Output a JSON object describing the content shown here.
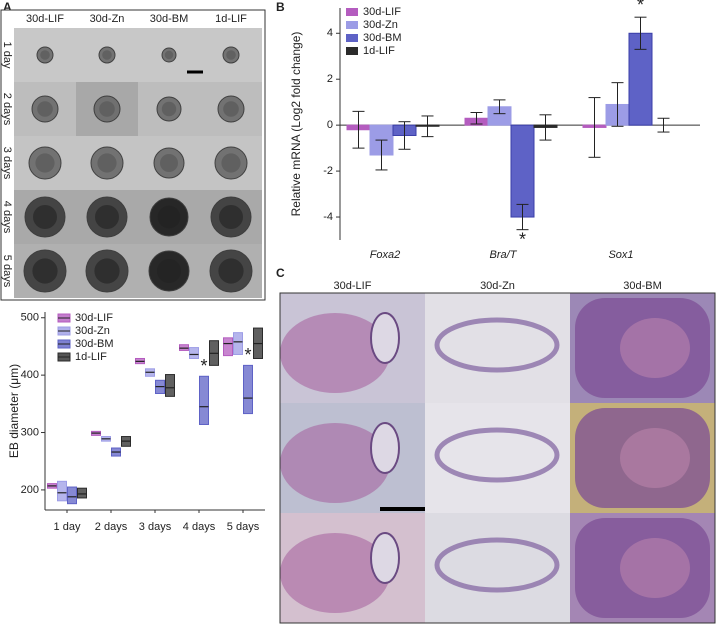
{
  "panel_labels": [
    "A",
    "B",
    "C"
  ],
  "panel_a_images": {
    "columns": [
      "30d-LIF",
      "30d-Zn",
      "30d-BM",
      "1d-LIF"
    ],
    "rows": [
      "1 day",
      "2 days",
      "3 days",
      "4 days",
      "5 days"
    ]
  },
  "panel_c_images": {
    "columns": [
      "30d-LIF",
      "30d-Zn",
      "30d-BM"
    ]
  },
  "chart_data": [
    {
      "type": "box",
      "y_label": "EB diameter (μm)",
      "categories": [
        "1 day",
        "2 days",
        "3 days",
        "4 days",
        "5 days"
      ],
      "series": [
        {
          "name": "30d-LIF",
          "color": "#b45cbf",
          "low": [
            203,
            295,
            420,
            443,
            434
          ],
          "median": [
            207,
            299,
            424,
            447,
            455
          ],
          "high": [
            211,
            302,
            429,
            453,
            465
          ]
        },
        {
          "name": "30d-Zn",
          "color": "#9c9ce6",
          "low": [
            181,
            285,
            398,
            429,
            436
          ],
          "median": [
            195,
            289,
            405,
            436,
            458
          ],
          "high": [
            215,
            293,
            411,
            448,
            474
          ]
        },
        {
          "name": "30d-BM",
          "color": "#5e62c6",
          "low": [
            176,
            259,
            368,
            314,
            333
          ],
          "median": [
            188,
            266,
            380,
            345,
            360
          ],
          "high": [
            205,
            273,
            391,
            398,
            417
          ]
        },
        {
          "name": "1d-LIF",
          "color": "#2b2b2b",
          "low": [
            186,
            276,
            363,
            417,
            429
          ],
          "median": [
            193,
            285,
            378,
            438,
            455
          ],
          "high": [
            203,
            293,
            401,
            460,
            482
          ]
        }
      ],
      "ylim": [
        165,
        510
      ],
      "yticks": [
        200,
        300,
        400,
        500
      ],
      "annotations": [
        "*",
        "*"
      ]
    },
    {
      "type": "bar",
      "y_label": "Relative mRNA (Log2 fold change)",
      "categories": [
        "Foxa2",
        "Bra/T",
        "Sox1"
      ],
      "series": [
        {
          "name": "30d-LIF",
          "color": "#b45cbf",
          "values": [
            -0.2,
            0.3,
            -0.1
          ],
          "errors": [
            0.8,
            0.25,
            1.3
          ]
        },
        {
          "name": "30d-Zn",
          "color": "#9c9ce6",
          "values": [
            -1.3,
            0.8,
            0.9
          ],
          "errors": [
            0.65,
            0.3,
            0.95
          ]
        },
        {
          "name": "30d-BM",
          "color": "#5e62c6",
          "values": [
            -0.45,
            -4.0,
            4.0
          ],
          "errors": [
            0.6,
            0.55,
            0.7
          ]
        },
        {
          "name": "1d-LIF",
          "color": "#2b2b2b",
          "values": [
            -0.05,
            -0.1,
            0.0
          ],
          "errors": [
            0.45,
            0.55,
            0.3
          ]
        }
      ],
      "ylim": [
        -5,
        5.1
      ],
      "yticks": [
        -4,
        -2,
        0,
        2,
        4
      ],
      "annotations": [
        "*",
        "*"
      ]
    }
  ]
}
